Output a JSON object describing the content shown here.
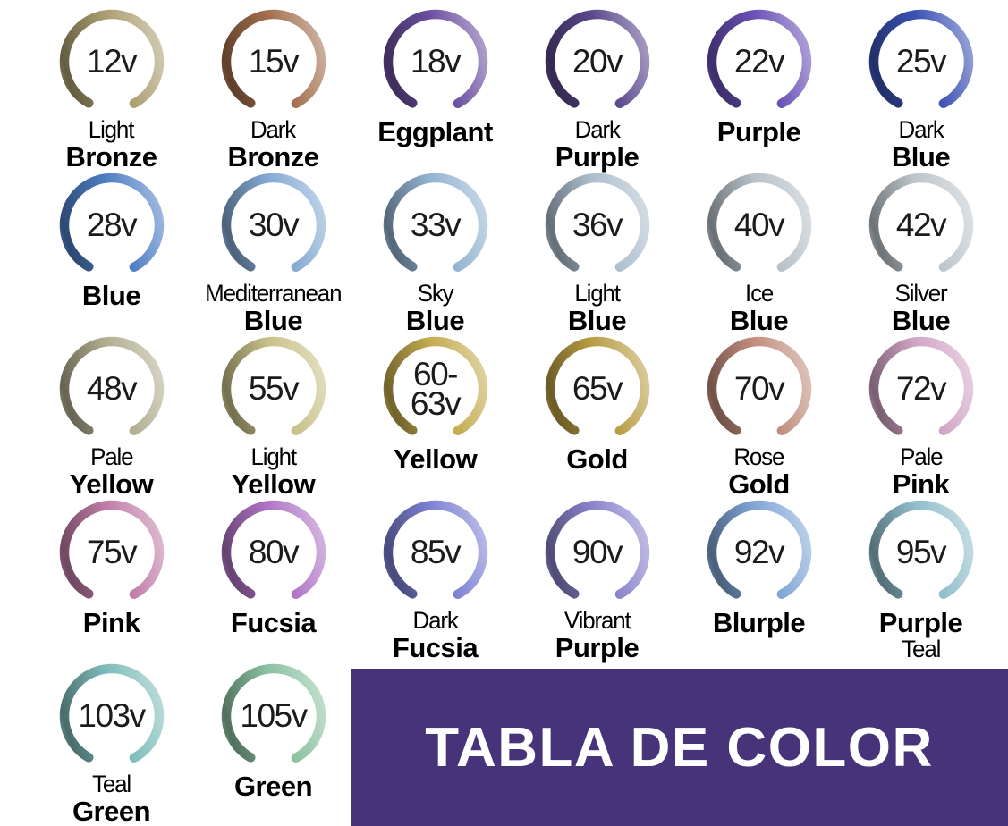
{
  "page": {
    "background": "#ffffff"
  },
  "banner": {
    "title": "TABLA DE COLOR",
    "background": "#463379",
    "text_color": "#ffffff"
  },
  "rings": {
    "rows": [
      [
        {
          "voltage": "12v",
          "color": "#ab9e70",
          "name_lines": [
            {
              "text": "Light",
              "bold": false
            },
            {
              "text": "Bronze",
              "bold": true
            }
          ]
        },
        {
          "voltage": "15v",
          "color": "#a26e4e",
          "name_lines": [
            {
              "text": "Dark",
              "bold": false
            },
            {
              "text": "Bronze",
              "bold": true
            }
          ]
        },
        {
          "voltage": "18v",
          "color": "#6b4f9f",
          "name_lines": [
            {
              "text": "Eggplant",
              "bold": true
            }
          ]
        },
        {
          "voltage": "20v",
          "color": "#59478c",
          "name_lines": [
            {
              "text": "Dark",
              "bold": false
            },
            {
              "text": "Purple",
              "bold": true
            }
          ]
        },
        {
          "voltage": "22v",
          "color": "#6950b6",
          "name_lines": [
            {
              "text": "Purple",
              "bold": true
            }
          ]
        },
        {
          "voltage": "25v",
          "color": "#3b51b3",
          "name_lines": [
            {
              "text": "Dark",
              "bold": false
            },
            {
              "text": "Blue",
              "bold": true
            }
          ]
        }
      ],
      [
        {
          "voltage": "28v",
          "color": "#4d7dc3",
          "name_lines": [
            {
              "text": "Blue",
              "bold": true
            }
          ]
        },
        {
          "voltage": "30v",
          "color": "#84a9d3",
          "name_lines": [
            {
              "text": "Mediterranean",
              "bold": false
            },
            {
              "text": "Blue",
              "bold": true
            }
          ]
        },
        {
          "voltage": "33v",
          "color": "#92b3d1",
          "name_lines": [
            {
              "text": "Sky",
              "bold": false
            },
            {
              "text": "Blue",
              "bold": true
            }
          ]
        },
        {
          "voltage": "36v",
          "color": "#adbecd",
          "name_lines": [
            {
              "text": "Light",
              "bold": false
            },
            {
              "text": "Blue",
              "bold": true
            }
          ]
        },
        {
          "voltage": "40v",
          "color": "#b7c1c8",
          "name_lines": [
            {
              "text": "Ice",
              "bold": false
            },
            {
              "text": "Blue",
              "bold": true
            }
          ]
        },
        {
          "voltage": "42v",
          "color": "#bdc6cb",
          "name_lines": [
            {
              "text": "Silver",
              "bold": false
            },
            {
              "text": "Blue",
              "bold": true
            }
          ]
        }
      ],
      [
        {
          "voltage": "48v",
          "color": "#b1ad8f",
          "name_lines": [
            {
              "text": "Pale",
              "bold": false
            },
            {
              "text": "Yellow",
              "bold": true
            }
          ]
        },
        {
          "voltage": "55v",
          "color": "#c8c088",
          "name_lines": [
            {
              "text": "Light",
              "bold": false
            },
            {
              "text": "Yellow",
              "bold": true
            }
          ]
        },
        {
          "voltage": "60-\n63v",
          "color": "#c3ab4e",
          "name_lines": [
            {
              "text": "Yellow",
              "bold": true
            }
          ]
        },
        {
          "voltage": "65v",
          "color": "#b89d43",
          "name_lines": [
            {
              "text": "Gold",
              "bold": true
            }
          ]
        },
        {
          "voltage": "70v",
          "color": "#c18d7d",
          "name_lines": [
            {
              "text": "Rose",
              "bold": false
            },
            {
              "text": "Gold",
              "bold": true
            }
          ]
        },
        {
          "voltage": "72v",
          "color": "#d1a4c5",
          "name_lines": [
            {
              "text": "Pale",
              "bold": false
            },
            {
              "text": "Pink",
              "bold": true
            }
          ]
        }
      ],
      [
        {
          "voltage": "75v",
          "color": "#bf7ca7",
          "name_lines": [
            {
              "text": "Pink",
              "bold": true
            }
          ]
        },
        {
          "voltage": "80v",
          "color": "#b074c5",
          "name_lines": [
            {
              "text": "Fucsia",
              "bold": true
            }
          ]
        },
        {
          "voltage": "85v",
          "color": "#7c80d3",
          "name_lines": [
            {
              "text": "Dark",
              "bold": false
            },
            {
              "text": "Fucsia",
              "bold": true
            }
          ]
        },
        {
          "voltage": "90v",
          "color": "#8a83cb",
          "name_lines": [
            {
              "text": "Vibrant",
              "bold": false
            },
            {
              "text": "Purple",
              "bold": true
            }
          ]
        },
        {
          "voltage": "92v",
          "color": "#7fa4d5",
          "name_lines": [
            {
              "text": "Blurple",
              "bold": true
            }
          ]
        },
        {
          "voltage": "95v",
          "color": "#90becb",
          "name_lines": [
            {
              "text": "Purple",
              "bold": true
            },
            {
              "text": "Teal",
              "bold": false
            }
          ]
        }
      ],
      [
        {
          "voltage": "103v",
          "color": "#7ebcba",
          "name_lines": [
            {
              "text": "Teal",
              "bold": false
            },
            {
              "text": "Green",
              "bold": true
            }
          ]
        },
        {
          "voltage": "105v",
          "color": "#8bc1a1",
          "name_lines": [
            {
              "text": "Green",
              "bold": true
            }
          ]
        }
      ]
    ]
  }
}
